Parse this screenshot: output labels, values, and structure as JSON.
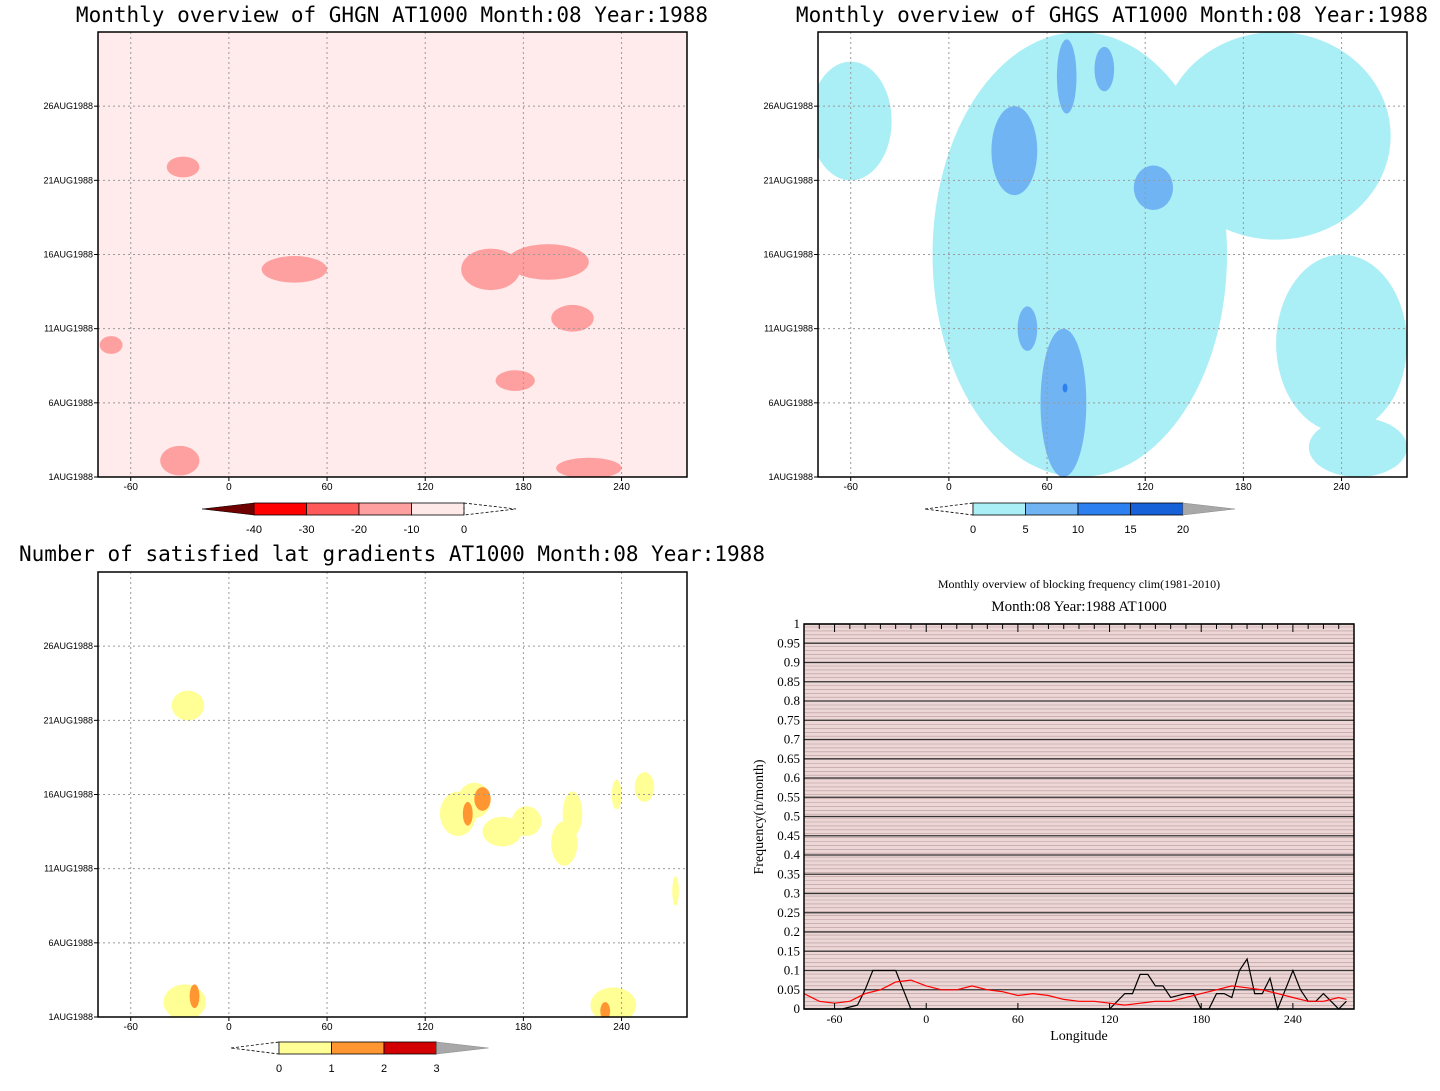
{
  "chart_data": [
    {
      "type": "heatmap",
      "title": "Monthly overview of GHGN AT1000 Month:08 Year:1988",
      "x_ticks": [
        "-60",
        "0",
        "60",
        "120",
        "180",
        "240"
      ],
      "y_ticks": [
        "1AUG1988",
        "6AUG1988",
        "11AUG1988",
        "16AUG1988",
        "21AUG1988",
        "26AUG1988"
      ],
      "xlim": [
        -80,
        280
      ],
      "ylim": [
        1,
        31
      ],
      "colorbar": {
        "labels": [
          "-40",
          "-30",
          "-20",
          "-10",
          "0"
        ],
        "levels": [
          -50,
          -40,
          -30,
          -20,
          -10,
          0
        ],
        "colors": [
          "#6e0000",
          "#ff0000",
          "#ff5a5a",
          "#ffa0a0",
          "#ffe8e8"
        ]
      },
      "background": "#ffebeb",
      "regions": [
        {
          "level": -10,
          "lon": 40,
          "day": 15,
          "rx": 20,
          "ry": 0.9
        },
        {
          "level": -10,
          "lon": 160,
          "day": 15,
          "rx": 18,
          "ry": 1.4
        },
        {
          "level": -10,
          "lon": 195,
          "day": 15.5,
          "rx": 25,
          "ry": 1.2
        },
        {
          "level": -10,
          "lon": 210,
          "day": 11.7,
          "rx": 13,
          "ry": 0.9
        },
        {
          "level": -10,
          "lon": 175,
          "day": 7.5,
          "rx": 12,
          "ry": 0.7
        },
        {
          "level": -10,
          "lon": -30,
          "day": 2.1,
          "rx": 12,
          "ry": 1.0
        },
        {
          "level": -10,
          "lon": 220,
          "day": 1.6,
          "rx": 20,
          "ry": 0.7
        },
        {
          "level": -10,
          "lon": -28,
          "day": 21.9,
          "rx": 10,
          "ry": 0.7
        },
        {
          "level": -10,
          "lon": -72,
          "day": 9.9,
          "rx": 7,
          "ry": 0.6
        }
      ]
    },
    {
      "type": "heatmap",
      "title": "Monthly overview of GHGS AT1000 Month:08 Year:1988",
      "x_ticks": [
        "-60",
        "0",
        "60",
        "120",
        "180",
        "240"
      ],
      "y_ticks": [
        "1AUG1988",
        "6AUG1988",
        "11AUG1988",
        "16AUG1988",
        "21AUG1988",
        "26AUG1988"
      ],
      "xlim": [
        -80,
        280
      ],
      "ylim": [
        1,
        31
      ],
      "colorbar": {
        "labels": [
          "0",
          "5",
          "10",
          "15",
          "20"
        ],
        "levels": [
          0,
          5,
          10,
          15,
          20
        ],
        "colors": [
          "#aaeef6",
          "#70b4f4",
          "#2c80f0",
          "#1660d8"
        ]
      },
      "background": "#ffffff",
      "regions": [
        {
          "level": 0,
          "lon": 80,
          "day": 16,
          "rx": 90,
          "ry": 15
        },
        {
          "level": 0,
          "lon": 200,
          "day": 24,
          "rx": 70,
          "ry": 7
        },
        {
          "level": 0,
          "lon": 240,
          "day": 10,
          "rx": 40,
          "ry": 6
        },
        {
          "level": 0,
          "lon": -60,
          "day": 25,
          "rx": 25,
          "ry": 4
        },
        {
          "level": 0,
          "lon": 250,
          "day": 3,
          "rx": 30,
          "ry": 2
        },
        {
          "level": 5,
          "lon": 70,
          "day": 6,
          "rx": 14,
          "ry": 5
        },
        {
          "level": 5,
          "lon": 40,
          "day": 23,
          "rx": 14,
          "ry": 3
        },
        {
          "level": 5,
          "lon": 125,
          "day": 20.5,
          "rx": 12,
          "ry": 1.5
        },
        {
          "level": 5,
          "lon": 72,
          "day": 28,
          "rx": 6,
          "ry": 2.5
        },
        {
          "level": 5,
          "lon": 95,
          "day": 28.5,
          "rx": 6,
          "ry": 1.5
        },
        {
          "level": 5,
          "lon": 48,
          "day": 11,
          "rx": 6,
          "ry": 1.5
        },
        {
          "level": 10,
          "lon": 71,
          "day": 7,
          "rx": 1.5,
          "ry": 0.3
        }
      ]
    },
    {
      "type": "heatmap",
      "title": "Number of satisfied lat gradients AT1000 Month:08 Year:1988",
      "x_ticks": [
        "-60",
        "0",
        "60",
        "120",
        "180",
        "240"
      ],
      "y_ticks": [
        "1AUG1988",
        "6AUG1988",
        "11AUG1988",
        "16AUG1988",
        "21AUG1988",
        "26AUG1988"
      ],
      "xlim": [
        -80,
        280
      ],
      "ylim": [
        1,
        31
      ],
      "colorbar": {
        "labels": [
          "0",
          "1",
          "2",
          "3"
        ],
        "levels": [
          0,
          1,
          2,
          3
        ],
        "colors": [
          "#ffff96",
          "#ff9632",
          "#d20000"
        ]
      },
      "background": "#ffffff",
      "regions": [
        {
          "level": 0,
          "lon": -25,
          "day": 22,
          "rx": 10,
          "ry": 1.0
        },
        {
          "level": 0,
          "lon": -27,
          "day": 2,
          "rx": 13,
          "ry": 1.2
        },
        {
          "level": 0,
          "lon": 140,
          "day": 14.7,
          "rx": 11,
          "ry": 1.5
        },
        {
          "level": 0,
          "lon": 150,
          "day": 15.6,
          "rx": 10,
          "ry": 1.2
        },
        {
          "level": 0,
          "lon": 167,
          "day": 13.5,
          "rx": 12,
          "ry": 1.0
        },
        {
          "level": 0,
          "lon": 182,
          "day": 14.2,
          "rx": 9,
          "ry": 1.0
        },
        {
          "level": 0,
          "lon": 205,
          "day": 12.7,
          "rx": 8,
          "ry": 1.5
        },
        {
          "level": 0,
          "lon": 210,
          "day": 14.7,
          "rx": 6,
          "ry": 1.5
        },
        {
          "level": 0,
          "lon": 237,
          "day": 16,
          "rx": 3,
          "ry": 1.0
        },
        {
          "level": 0,
          "lon": 254,
          "day": 16.5,
          "rx": 6,
          "ry": 1.0
        },
        {
          "level": 0,
          "lon": 273,
          "day": 9.5,
          "rx": 2,
          "ry": 1.0
        },
        {
          "level": 0,
          "lon": 235,
          "day": 1.8,
          "rx": 14,
          "ry": 1.2
        },
        {
          "level": 1,
          "lon": 146,
          "day": 14.7,
          "rx": 3,
          "ry": 0.8
        },
        {
          "level": 1,
          "lon": 155,
          "day": 15.7,
          "rx": 5,
          "ry": 0.8
        },
        {
          "level": 1,
          "lon": -21,
          "day": 2.4,
          "rx": 3,
          "ry": 0.8
        },
        {
          "level": 1,
          "lon": 230,
          "day": 1.4,
          "rx": 3,
          "ry": 0.6
        }
      ]
    },
    {
      "type": "line",
      "title": "Monthly overview of blocking frequency clim(1981-2010)",
      "subtitle": "Month:08 Year:1988  AT1000",
      "xlabel": "Longitude",
      "ylabel": "Frequency(n/month)",
      "xlim": [
        -80,
        280
      ],
      "ylim": [
        0,
        1
      ],
      "x_ticks": [
        "-60",
        "0",
        "60",
        "120",
        "180",
        "240"
      ],
      "y_ticks": [
        "0",
        "0.05",
        "0.1",
        "0.15",
        "0.2",
        "0.25",
        "0.3",
        "0.35",
        "0.4",
        "0.45",
        "0.5",
        "0.55",
        "0.6",
        "0.65",
        "0.7",
        "0.75",
        "0.8",
        "0.85",
        "0.9",
        "0.95",
        "1"
      ],
      "series": [
        {
          "color": "#000000",
          "x": [
            -80,
            -65,
            -55,
            -45,
            -40,
            -35,
            -30,
            -20,
            -15,
            -10,
            0,
            60,
            120,
            130,
            135,
            140,
            145,
            150,
            155,
            160,
            170,
            175,
            180,
            185,
            190,
            195,
            200,
            205,
            210,
            215,
            220,
            225,
            230,
            235,
            240,
            245,
            250,
            255,
            260,
            265,
            270,
            275
          ],
          "y": [
            0,
            0,
            0,
            0.01,
            0.05,
            0.1,
            0.1,
            0.1,
            0.05,
            0,
            0,
            0,
            0,
            0.04,
            0.04,
            0.09,
            0.09,
            0.06,
            0.06,
            0.03,
            0.04,
            0.04,
            0,
            0,
            0.04,
            0.04,
            0.03,
            0.1,
            0.13,
            0.04,
            0.04,
            0.08,
            0,
            0.05,
            0.1,
            0.05,
            0.02,
            0.02,
            0.04,
            0.02,
            0,
            0.02
          ]
        },
        {
          "color": "#ff0000",
          "x": [
            -80,
            -70,
            -60,
            -50,
            -40,
            -30,
            -20,
            -10,
            0,
            10,
            20,
            30,
            40,
            50,
            60,
            70,
            80,
            90,
            100,
            110,
            120,
            130,
            140,
            150,
            160,
            170,
            180,
            190,
            200,
            210,
            220,
            230,
            240,
            250,
            260,
            270,
            275
          ],
          "y": [
            0.04,
            0.02,
            0.015,
            0.02,
            0.04,
            0.05,
            0.07,
            0.075,
            0.06,
            0.05,
            0.05,
            0.06,
            0.05,
            0.045,
            0.035,
            0.04,
            0.035,
            0.025,
            0.02,
            0.02,
            0.015,
            0.01,
            0.015,
            0.02,
            0.02,
            0.03,
            0.04,
            0.05,
            0.06,
            0.055,
            0.05,
            0.04,
            0.03,
            0.02,
            0.02,
            0.03,
            0.025
          ]
        }
      ]
    }
  ]
}
